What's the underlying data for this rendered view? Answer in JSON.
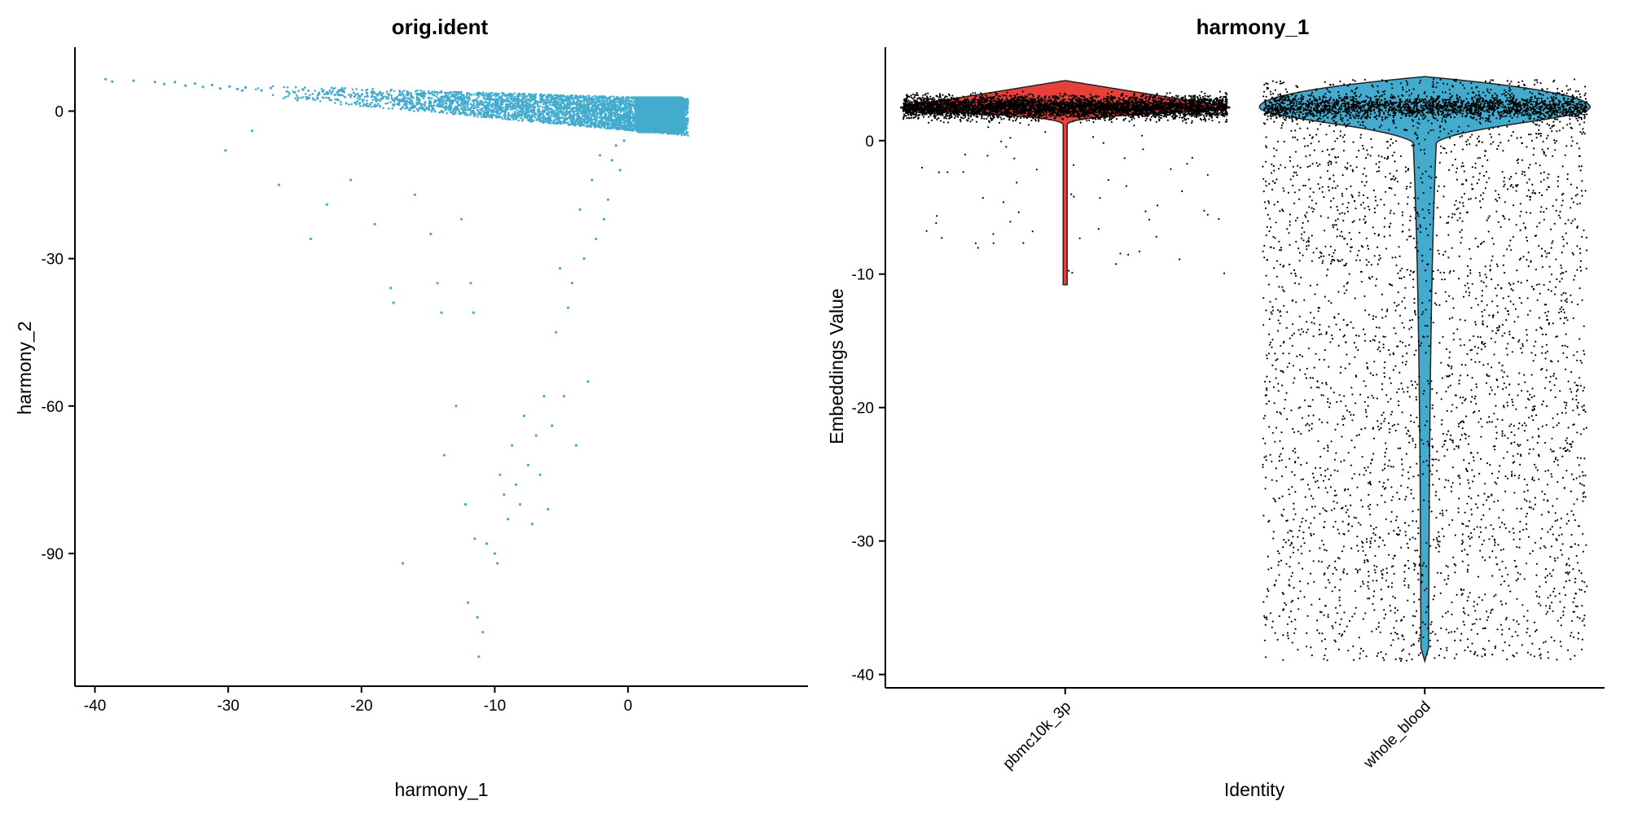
{
  "chart_data": [
    {
      "type": "scatter",
      "title": "orig.ident",
      "xlabel": "harmony_1",
      "ylabel": "harmony_2",
      "xlim": [
        -41.5,
        13.5
      ],
      "ylim": [
        -117,
        13
      ],
      "xticks": [
        -40,
        -30,
        -20,
        -10,
        0
      ],
      "yticks": [
        0,
        -30,
        -60,
        -90
      ],
      "grid": false,
      "legend": "none",
      "point_color": "#43ACCE",
      "series": [
        {
          "points": [
            [
              -39.2,
              6.5
            ],
            [
              -38.7,
              6.0
            ],
            [
              -37.1,
              6.2
            ],
            [
              -35.5,
              5.9
            ],
            [
              -34.8,
              5.5
            ],
            [
              -34.0,
              5.9
            ],
            [
              -33.2,
              5.2
            ],
            [
              -32.5,
              5.6
            ],
            [
              -31.9,
              4.9
            ],
            [
              -31.2,
              5.3
            ],
            [
              -30.6,
              4.6
            ],
            [
              -30.2,
              -8.0
            ],
            [
              -29.9,
              5.0
            ],
            [
              -29.3,
              4.5
            ],
            [
              -28.7,
              4.8
            ],
            [
              -28.2,
              -4.0
            ],
            [
              -27.5,
              4.2
            ],
            [
              -26.8,
              4.7
            ],
            [
              -26.2,
              -15.0
            ],
            [
              -25.6,
              4.0
            ],
            [
              -25.0,
              3.8
            ],
            [
              -24.4,
              4.4
            ],
            [
              -23.8,
              -26.0
            ],
            [
              -23.2,
              3.6
            ],
            [
              -22.6,
              -19.0
            ],
            [
              -22.0,
              3.3
            ],
            [
              -21.4,
              4.0
            ],
            [
              -20.8,
              -14.0
            ],
            [
              -20.2,
              3.1
            ],
            [
              -19.6,
              3.7
            ],
            [
              -19.0,
              -23.0
            ],
            [
              -18.4,
              2.8
            ],
            [
              -17.8,
              -36.0
            ],
            [
              -17.6,
              -39.0
            ],
            [
              -17.1,
              3.3
            ],
            [
              -16.9,
              -92.0
            ],
            [
              -16.5,
              2.6
            ],
            [
              -16.0,
              -17.0
            ],
            [
              -15.4,
              3.0
            ],
            [
              -14.8,
              -25.0
            ],
            [
              -14.3,
              -35.0
            ],
            [
              -14.0,
              -41.0
            ],
            [
              -13.8,
              -70.0
            ],
            [
              -13.4,
              2.7
            ],
            [
              -12.9,
              -60.0
            ],
            [
              -12.5,
              -22.0
            ],
            [
              -12.2,
              -80.0
            ],
            [
              -12.0,
              -100.0
            ],
            [
              -11.8,
              -35.0
            ],
            [
              -11.6,
              -41.0
            ],
            [
              -11.5,
              -87.0
            ],
            [
              -11.3,
              -103.0
            ],
            [
              -11.2,
              -111.0
            ],
            [
              -10.9,
              -106.0
            ],
            [
              -10.6,
              -88.0
            ],
            [
              -10.3,
              2.3
            ],
            [
              -10.0,
              -90.0
            ],
            [
              -9.8,
              -92.0
            ],
            [
              -9.6,
              -74.0
            ],
            [
              -9.3,
              -78.0
            ],
            [
              -9.0,
              -83.0
            ],
            [
              -8.7,
              -68.0
            ],
            [
              -8.4,
              -76.0
            ],
            [
              -8.1,
              -80.0
            ],
            [
              -7.8,
              -62.0
            ],
            [
              -7.5,
              -72.0
            ],
            [
              -7.2,
              -84.0
            ],
            [
              -6.9,
              -66.0
            ],
            [
              -6.6,
              -74.0
            ],
            [
              -6.3,
              -58.0
            ],
            [
              -6.0,
              -81.0
            ],
            [
              -5.7,
              -64.0
            ],
            [
              -5.4,
              -45.0
            ],
            [
              -5.1,
              -32.0
            ],
            [
              -4.8,
              -58.0
            ],
            [
              -4.5,
              -40.0
            ],
            [
              -4.2,
              -35.0
            ],
            [
              -3.9,
              -68.0
            ],
            [
              -3.6,
              -20.0
            ],
            [
              -3.3,
              -30.0
            ],
            [
              -3.0,
              -55.0
            ],
            [
              -2.7,
              -14.0
            ],
            [
              -2.4,
              -26.0
            ],
            [
              -2.1,
              -9.0
            ],
            [
              -1.8,
              -22.0
            ],
            [
              -1.5,
              -18.0
            ],
            [
              -1.2,
              -10.0
            ],
            [
              -0.9,
              -7.0
            ],
            [
              -0.6,
              -12.0
            ],
            [
              -0.3,
              -6.0
            ]
          ],
          "band": {
            "x_from": -30.5,
            "x_to": 4.5,
            "y_top_from": 5.5,
            "y_top_to": 2.5,
            "y_bottom_from": 3.5,
            "y_bottom_to": -5.0
          }
        }
      ]
    },
    {
      "type": "violin",
      "title": "harmony_1",
      "xlabel": "Identity",
      "ylabel": "Embeddings Value",
      "categories": [
        "pbmc10k_3p",
        "whole_blood"
      ],
      "ylim": [
        -41,
        7
      ],
      "yticks": [
        0,
        -10,
        -20,
        -30,
        -40
      ],
      "grid": false,
      "legend": "none",
      "jitter_points": true,
      "series": [
        {
          "name": "pbmc10k_3p",
          "color": "#E8413B",
          "median": 2.5,
          "q_high": 4.5,
          "min": -10.8,
          "max": 4.5
        },
        {
          "name": "whole_blood",
          "color": "#43ACCE",
          "median": 2.5,
          "q_high": 4.8,
          "min": -39.0,
          "max": 4.8
        }
      ]
    }
  ]
}
